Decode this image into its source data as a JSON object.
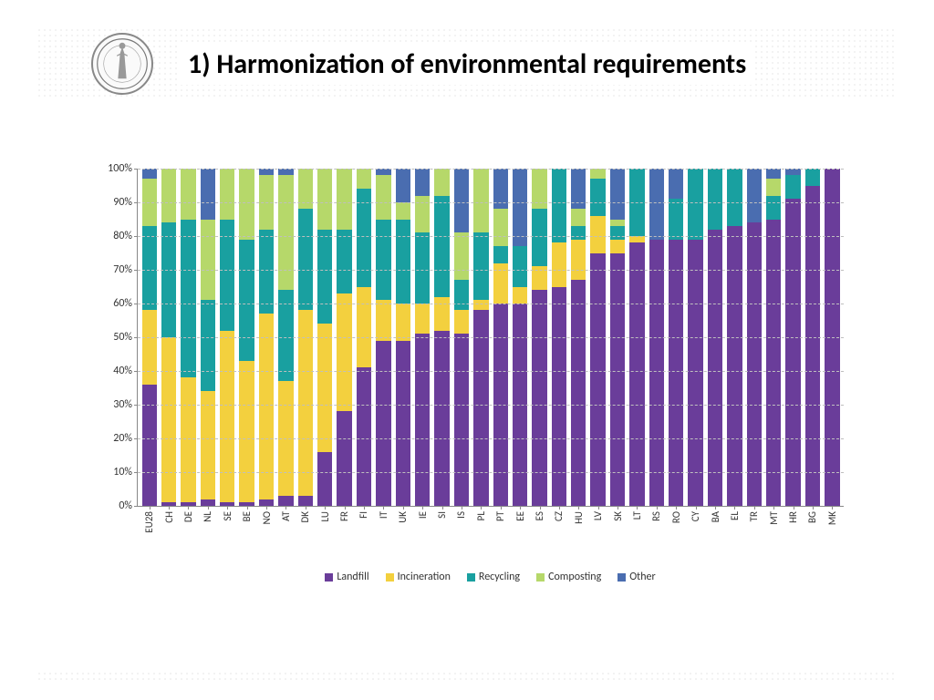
{
  "title": "1) Harmonization of environmental requirements",
  "chart": {
    "type": "stacked-bar",
    "ylim": [
      0,
      100
    ],
    "ytick_step": 10,
    "ytick_suffix": "%",
    "grid_color": "#bfbfbf",
    "axis_color": "#888888",
    "background_color": "#ffffff",
    "label_fontsize": 12,
    "xlabel_fontsize": 11,
    "series": [
      {
        "key": "landfill",
        "label": "Landfill",
        "color": "#6a3d9a"
      },
      {
        "key": "incineration",
        "label": "Incineration",
        "color": "#f3d03e"
      },
      {
        "key": "recycling",
        "label": "Recycling",
        "color": "#19a0a0"
      },
      {
        "key": "composting",
        "label": "Composting",
        "color": "#b6d86a"
      },
      {
        "key": "other",
        "label": "Other",
        "color": "#4a6db0"
      }
    ],
    "categories": [
      {
        "name": "EU28",
        "landfill": 36,
        "incineration": 22,
        "recycling": 25,
        "composting": 14,
        "other": 3
      },
      {
        "name": "CH",
        "landfill": 1,
        "incineration": 49,
        "recycling": 34,
        "composting": 16,
        "other": 0
      },
      {
        "name": "DE",
        "landfill": 1,
        "incineration": 37,
        "recycling": 47,
        "composting": 15,
        "other": 0
      },
      {
        "name": "NL",
        "landfill": 2,
        "incineration": 32,
        "recycling": 27,
        "composting": 24,
        "other": 15
      },
      {
        "name": "SE",
        "landfill": 1,
        "incineration": 51,
        "recycling": 33,
        "composting": 15,
        "other": 0
      },
      {
        "name": "BE",
        "landfill": 1,
        "incineration": 42,
        "recycling": 36,
        "composting": 21,
        "other": 0
      },
      {
        "name": "NO",
        "landfill": 2,
        "incineration": 55,
        "recycling": 25,
        "composting": 16,
        "other": 2
      },
      {
        "name": "AT",
        "landfill": 3,
        "incineration": 34,
        "recycling": 27,
        "composting": 34,
        "other": 2
      },
      {
        "name": "DK",
        "landfill": 3,
        "incineration": 55,
        "recycling": 30,
        "composting": 12,
        "other": 0
      },
      {
        "name": "LU",
        "landfill": 16,
        "incineration": 38,
        "recycling": 28,
        "composting": 18,
        "other": 0
      },
      {
        "name": "FR",
        "landfill": 28,
        "incineration": 35,
        "recycling": 19,
        "composting": 18,
        "other": 0
      },
      {
        "name": "FI",
        "landfill": 41,
        "incineration": 24,
        "recycling": 29,
        "composting": 6,
        "other": 0
      },
      {
        "name": "IT",
        "landfill": 49,
        "incineration": 12,
        "recycling": 24,
        "composting": 13,
        "other": 2
      },
      {
        "name": "UK",
        "landfill": 49,
        "incineration": 11,
        "recycling": 25,
        "composting": 5,
        "other": 10
      },
      {
        "name": "IE",
        "landfill": 51,
        "incineration": 9,
        "recycling": 21,
        "composting": 11,
        "other": 8
      },
      {
        "name": "SI",
        "landfill": 52,
        "incineration": 10,
        "recycling": 30,
        "composting": 8,
        "other": 0
      },
      {
        "name": "IS",
        "landfill": 51,
        "incineration": 7,
        "recycling": 9,
        "composting": 14,
        "other": 19
      },
      {
        "name": "PL",
        "landfill": 58,
        "incineration": 3,
        "recycling": 20,
        "composting": 19,
        "other": 0
      },
      {
        "name": "PT",
        "landfill": 60,
        "incineration": 12,
        "recycling": 5,
        "composting": 11,
        "other": 12
      },
      {
        "name": "EE",
        "landfill": 60,
        "incineration": 5,
        "recycling": 12,
        "composting": 0,
        "other": 23
      },
      {
        "name": "ES",
        "landfill": 64,
        "incineration": 7,
        "recycling": 17,
        "composting": 12,
        "other": 0
      },
      {
        "name": "CZ",
        "landfill": 65,
        "incineration": 13,
        "recycling": 22,
        "composting": 0,
        "other": 0
      },
      {
        "name": "HU",
        "landfill": 67,
        "incineration": 12,
        "recycling": 4,
        "composting": 5,
        "other": 12
      },
      {
        "name": "LV",
        "landfill": 75,
        "incineration": 11,
        "recycling": 11,
        "composting": 3,
        "other": 0
      },
      {
        "name": "SK",
        "landfill": 75,
        "incineration": 4,
        "recycling": 4,
        "composting": 2,
        "other": 15
      },
      {
        "name": "LT",
        "landfill": 78,
        "incineration": 2,
        "recycling": 20,
        "composting": 0,
        "other": 0
      },
      {
        "name": "RS",
        "landfill": 79,
        "incineration": 0,
        "recycling": 0,
        "composting": 0,
        "other": 21
      },
      {
        "name": "RO",
        "landfill": 79,
        "incineration": 0,
        "recycling": 12,
        "composting": 0,
        "other": 9
      },
      {
        "name": "CY",
        "landfill": 79,
        "incineration": 0,
        "recycling": 21,
        "composting": 0,
        "other": 0
      },
      {
        "name": "BA",
        "landfill": 82,
        "incineration": 0,
        "recycling": 18,
        "composting": 0,
        "other": 0
      },
      {
        "name": "EL",
        "landfill": 83,
        "incineration": 0,
        "recycling": 17,
        "composting": 0,
        "other": 0
      },
      {
        "name": "TR",
        "landfill": 84,
        "incineration": 0,
        "recycling": 0,
        "composting": 0,
        "other": 16
      },
      {
        "name": "MT",
        "landfill": 85,
        "incineration": 0,
        "recycling": 7,
        "composting": 5,
        "other": 3
      },
      {
        "name": "HR",
        "landfill": 91,
        "incineration": 0,
        "recycling": 7,
        "composting": 0,
        "other": 2
      },
      {
        "name": "BG",
        "landfill": 95,
        "incineration": 0,
        "recycling": 5,
        "composting": 0,
        "other": 0
      },
      {
        "name": "MK",
        "landfill": 100,
        "incineration": 0,
        "recycling": 0,
        "composting": 0,
        "other": 0
      }
    ]
  }
}
